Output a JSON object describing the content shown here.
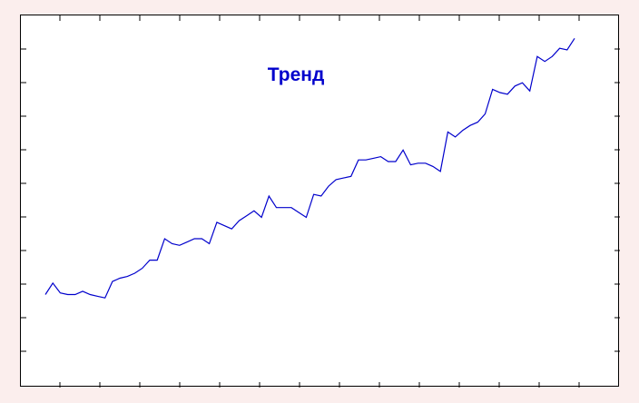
{
  "chart_data": {
    "type": "line",
    "title": "Тренд",
    "title_color": "#0000cc",
    "line_color": "#0000cc",
    "grid": false,
    "series": [
      {
        "values": [
          5.0,
          5.7,
          5.1,
          5.0,
          5.0,
          5.2,
          5.0,
          4.9,
          4.8,
          5.8,
          6.0,
          6.1,
          6.3,
          6.6,
          7.1,
          7.1,
          8.4,
          8.1,
          8.0,
          8.2,
          8.4,
          8.4,
          8.1,
          9.4,
          9.2,
          9.0,
          9.5,
          9.8,
          10.1,
          9.7,
          11.0,
          10.3,
          10.3,
          10.3,
          10.0,
          9.7,
          11.1,
          11.0,
          11.6,
          12.0,
          12.1,
          12.2,
          13.2,
          13.2,
          13.3,
          13.4,
          13.1,
          13.1,
          13.8,
          12.9,
          13.0,
          13.0,
          12.8,
          12.5,
          14.9,
          14.6,
          15.0,
          15.3,
          15.5,
          16.0,
          17.5,
          17.3,
          17.2,
          17.7,
          17.9,
          17.4,
          19.5,
          19.2,
          19.5,
          20.0,
          19.9,
          20.6
        ]
      }
    ],
    "x_ticks_count": 14,
    "y_ticks_count": 10
  }
}
